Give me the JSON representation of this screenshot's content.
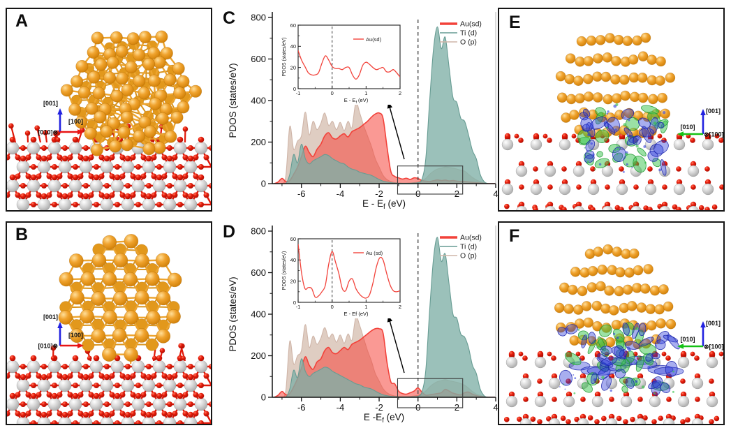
{
  "panels": {
    "a": {
      "label": "A"
    },
    "b": {
      "label": "B"
    },
    "c": {
      "label": "C"
    },
    "d": {
      "label": "D"
    },
    "e": {
      "label": "E"
    },
    "f": {
      "label": "F"
    }
  },
  "orientation": {
    "side_view": {
      "up": "[001]",
      "right": "[100]",
      "into": "[010]",
      "into_symbol": "⊗",
      "up_color": "#2222e0",
      "right_color": "#e81414"
    },
    "front_view": {
      "up": "[001]",
      "left": "[010]",
      "into": "[100]",
      "into_symbol": "⊗",
      "up_color": "#2222e0",
      "left_color": "#15c215"
    }
  },
  "atoms": {
    "au_color": "#f0a32e",
    "au_highlight": "#ffdf9a",
    "au_dark": "#d07f06",
    "ti_color": "#d6d6d6",
    "ti_highlight": "#ffffff",
    "ti_dark": "#a8a8a8",
    "o_color": "#e81e0c",
    "gold_bond": "#eca42f",
    "red_bond": "#e01708"
  },
  "isosurface": {
    "accumulation": "#2e3cd8",
    "depletion": "#36c24e"
  },
  "chart_data": [
    {
      "id": "C",
      "type": "area",
      "ylabel": "PDOS (states/eV)",
      "xlabel": {
        "pre": "E - E",
        "sub": "f",
        "post": " (eV)"
      },
      "xlim": [
        -7.5,
        4
      ],
      "ylim": [
        0,
        800
      ],
      "xticks": [
        -6,
        -4,
        -2,
        0,
        2,
        4
      ],
      "xminor": [
        -7,
        -5,
        -3,
        -1,
        1,
        3
      ],
      "yticks": [
        0,
        200,
        400,
        600,
        800
      ],
      "yminor": [
        100,
        300,
        500,
        700
      ],
      "fermi_x": 0,
      "x_start": -7.4,
      "x_step": 0.2,
      "series": [
        {
          "name": "Au(sd)",
          "line": "#f2423a",
          "fill": "rgba(246,70,60,0.55)",
          "lw": 3.5,
          "values": [
            0,
            8,
            25,
            10,
            15,
            45,
            80,
            130,
            180,
            150,
            130,
            165,
            190,
            230,
            245,
            220,
            215,
            230,
            240,
            225,
            250,
            260,
            270,
            285,
            300,
            320,
            335,
            340,
            315,
            180,
            60,
            35,
            28,
            22,
            26,
            20,
            28,
            25,
            15,
            12,
            10,
            14,
            18,
            15,
            17,
            13,
            15,
            12,
            10,
            10,
            8,
            6,
            5,
            3,
            2,
            0,
            0,
            0
          ]
        },
        {
          "name": "Ti (d)",
          "line": "#679c93",
          "fill": "rgba(127,176,166,0.78)",
          "lw": 1.5,
          "values": [
            0,
            0,
            0,
            0,
            45,
            140,
            100,
            190,
            120,
            95,
            110,
            120,
            130,
            140,
            135,
            120,
            110,
            100,
            95,
            80,
            70,
            65,
            55,
            50,
            45,
            40,
            30,
            20,
            12,
            8,
            5,
            3,
            2,
            2,
            2,
            2,
            3,
            5,
            20,
            120,
            400,
            650,
            755,
            650,
            705,
            560,
            415,
            390,
            315,
            300,
            235,
            160,
            120,
            45,
            10,
            0,
            0,
            0
          ]
        },
        {
          "name": "O (p)",
          "line": "#cfb5a8",
          "fill": "rgba(215,193,179,0.8)",
          "lw": 1.5,
          "values": [
            0,
            0,
            0,
            40,
            275,
            165,
            205,
            230,
            345,
            235,
            300,
            260,
            290,
            340,
            280,
            300,
            260,
            295,
            255,
            300,
            270,
            390,
            340,
            280,
            230,
            180,
            120,
            80,
            40,
            20,
            10,
            5,
            3,
            2,
            2,
            3,
            5,
            8,
            15,
            25,
            45,
            60,
            70,
            75,
            80,
            78,
            75,
            70,
            65,
            60,
            45,
            30,
            18,
            10,
            5,
            0,
            0,
            0
          ]
        }
      ],
      "legend": [
        "Au(sd)",
        "Ti (d)",
        "O (p)"
      ],
      "zoom_box": {
        "x0": -1.05,
        "x1": 2.3,
        "y1": 85
      },
      "inset": {
        "ylabel": "PDOS (states/eV)",
        "xlabel": {
          "pre": "E - E",
          "sub": "f",
          "post": " (eV)"
        },
        "xlim": [
          -1,
          2
        ],
        "ylim": [
          0,
          60
        ],
        "xticks": [
          -1,
          0,
          1,
          2
        ],
        "xminor": [
          -0.5,
          0.5,
          1.5
        ],
        "yticks": [
          0,
          20,
          40,
          60
        ],
        "yminor": [
          10,
          30,
          50
        ],
        "legend": "Au(sd)",
        "line": "#f2433b",
        "x_start": -1,
        "x_step": 0.1,
        "values": [
          36,
          27,
          21,
          15,
          13,
          13,
          15,
          24,
          31,
          27,
          21,
          19,
          19,
          18,
          20,
          20,
          13,
          9,
          13,
          22,
          25,
          23,
          20,
          18,
          19,
          20,
          16,
          16,
          18,
          15,
          11
        ]
      }
    },
    {
      "id": "D",
      "type": "area",
      "ylabel": "PDOS (states/eV)",
      "xlabel": {
        "pre": "E -E",
        "sub": "f",
        "post": " (eV)"
      },
      "xlim": [
        -7.5,
        4
      ],
      "ylim": [
        0,
        800
      ],
      "xticks": [
        -6,
        -4,
        -2,
        0,
        2,
        4
      ],
      "xminor": [
        -7,
        -5,
        -3,
        -1,
        1,
        3
      ],
      "yticks": [
        0,
        200,
        400,
        600,
        800
      ],
      "yminor": [
        100,
        300,
        500,
        700
      ],
      "fermi_x": 0,
      "x_start": -7.4,
      "x_step": 0.2,
      "series": [
        {
          "name": "Au(sd)",
          "line": "#f2423a",
          "fill": "rgba(246,70,60,0.55)",
          "lw": 3.5,
          "values": [
            0,
            10,
            28,
            12,
            18,
            50,
            90,
            140,
            195,
            155,
            135,
            170,
            185,
            225,
            240,
            215,
            210,
            225,
            240,
            230,
            255,
            265,
            275,
            290,
            305,
            320,
            330,
            330,
            310,
            170,
            75,
            65,
            30,
            18,
            15,
            22,
            30,
            45,
            25,
            10,
            12,
            15,
            18,
            22,
            38,
            30,
            20,
            15,
            12,
            22,
            25,
            15,
            8,
            4,
            2,
            0,
            0,
            0
          ]
        },
        {
          "name": "Ti (d)",
          "line": "#679c93",
          "fill": "rgba(127,176,166,0.78)",
          "lw": 1.5,
          "values": [
            0,
            0,
            0,
            0,
            40,
            130,
            95,
            185,
            125,
            100,
            115,
            125,
            135,
            145,
            140,
            125,
            115,
            105,
            95,
            85,
            75,
            65,
            60,
            50,
            45,
            40,
            30,
            20,
            12,
            8,
            5,
            3,
            2,
            2,
            2,
            2,
            3,
            5,
            25,
            130,
            420,
            670,
            770,
            655,
            690,
            545,
            400,
            380,
            305,
            290,
            240,
            155,
            115,
            40,
            8,
            0,
            0,
            0
          ]
        },
        {
          "name": "O (p)",
          "line": "#cfb5a8",
          "fill": "rgba(215,193,179,0.8)",
          "lw": 1.5,
          "values": [
            0,
            0,
            0,
            35,
            270,
            160,
            200,
            225,
            350,
            240,
            295,
            255,
            285,
            335,
            285,
            305,
            265,
            300,
            260,
            305,
            275,
            385,
            345,
            285,
            225,
            175,
            115,
            78,
            42,
            22,
            12,
            6,
            4,
            3,
            3,
            4,
            6,
            10,
            18,
            30,
            50,
            65,
            75,
            80,
            85,
            80,
            76,
            72,
            66,
            58,
            44,
            28,
            16,
            9,
            4,
            0,
            0,
            0
          ]
        }
      ],
      "legend": [
        "Au(sd)",
        "Ti (d)",
        "O (p)"
      ],
      "zoom_box": {
        "x0": -1.05,
        "x1": 2.3,
        "y1": 90
      },
      "inset": {
        "ylabel": "PDOS (states/eV)",
        "xlabel": {
          "pre": "E - Ef",
          "sub": "",
          "post": " (eV)"
        },
        "xlim": [
          -1,
          2
        ],
        "ylim": [
          0,
          60
        ],
        "xticks": [
          -1,
          0,
          1,
          2
        ],
        "xminor": [
          -0.5,
          0.5,
          1.5
        ],
        "yticks": [
          0,
          20,
          40,
          60
        ],
        "yminor": [
          10,
          30,
          50
        ],
        "legend": "Au (sd)",
        "line": "#f2433b",
        "x_start": -1,
        "x_step": 0.1,
        "values": [
          55,
          28,
          13,
          14,
          13,
          5,
          6,
          10,
          16,
          36,
          48,
          38,
          27,
          13,
          11,
          20,
          22,
          13,
          8,
          5,
          4,
          7,
          18,
          33,
          42,
          40,
          28,
          17,
          11,
          10,
          11
        ]
      }
    }
  ]
}
